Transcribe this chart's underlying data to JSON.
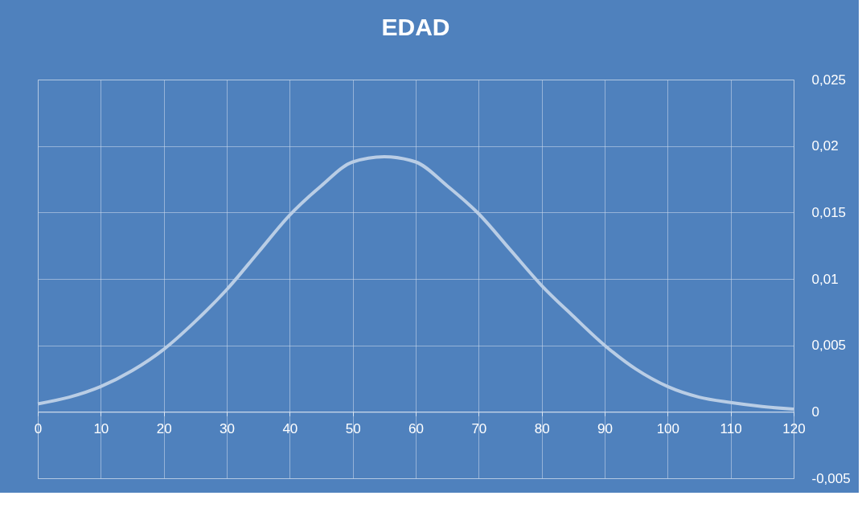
{
  "chart_data": {
    "type": "line",
    "title": "EDAD",
    "x": [
      0,
      5,
      10,
      15,
      20,
      25,
      30,
      35,
      40,
      45,
      50,
      55,
      60,
      65,
      70,
      75,
      80,
      85,
      90,
      95,
      100,
      105,
      110,
      115,
      120
    ],
    "series": [
      {
        "color": "#b9cde5",
        "values": [
          0.0006,
          0.0011,
          0.0019,
          0.0031,
          0.0047,
          0.0068,
          0.0092,
          0.012,
          0.0148,
          0.017,
          0.0188,
          0.0192,
          0.0188,
          0.017,
          0.0149,
          0.0122,
          0.0095,
          0.0072,
          0.005,
          0.0032,
          0.0019,
          0.0011,
          0.0007,
          0.0004,
          0.0002
        ]
      }
    ],
    "xlim": [
      0,
      120
    ],
    "xticks": [
      0,
      10,
      20,
      30,
      40,
      50,
      60,
      70,
      80,
      90,
      100,
      110,
      120
    ],
    "ylim": [
      -0.005,
      0.025
    ],
    "yticks": [
      {
        "value": -0.005,
        "label": "-0,005"
      },
      {
        "value": 0,
        "label": "0"
      },
      {
        "value": 0.005,
        "label": "0,005"
      },
      {
        "value": 0.01,
        "label": "0,01"
      },
      {
        "value": 0.015,
        "label": "0,015"
      },
      {
        "value": 0.02,
        "label": "0,02"
      },
      {
        "value": 0.025,
        "label": "0,025"
      }
    ],
    "grid": true,
    "marker": "none",
    "line_style": "solid"
  }
}
